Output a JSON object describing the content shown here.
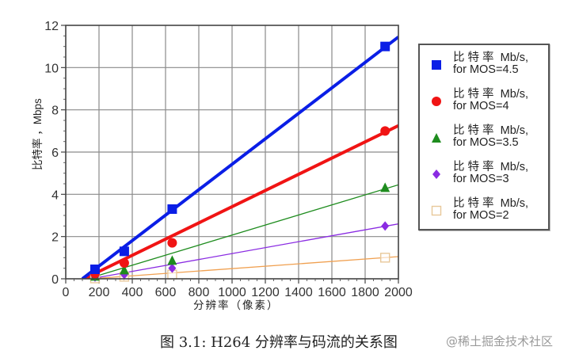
{
  "chart_data": {
    "type": "scatter",
    "title": "",
    "xlabel": "分辨率（像素）",
    "ylabel": "比特率，Mbps",
    "xlim": [
      0,
      2000
    ],
    "ylim": [
      0,
      12
    ],
    "xticks": [
      0,
      200,
      400,
      600,
      800,
      1000,
      1200,
      1400,
      1600,
      1800,
      2000
    ],
    "yticks": [
      0,
      2,
      4,
      6,
      8,
      10,
      12
    ],
    "grid": true,
    "legend_position": "right, outside plot",
    "series": [
      {
        "name": "比特率 Mb/s, for MOS=4.5",
        "color": "#0a1ee6",
        "marker": "square",
        "line_width": 4,
        "x": [
          176,
          352,
          640,
          1920
        ],
        "y": [
          0.45,
          1.3,
          3.3,
          11.0
        ],
        "fit_line": {
          "x": [
            100,
            2000
          ],
          "y": [
            0.0,
            11.45
          ]
        }
      },
      {
        "name": "比特率 Mb/s, for MOS=4",
        "color": "#f01414",
        "marker": "circle",
        "line_width": 4,
        "x": [
          176,
          352,
          640,
          1920
        ],
        "y": [
          0.25,
          0.75,
          1.7,
          7.0
        ],
        "fit_line": {
          "x": [
            110,
            2000
          ],
          "y": [
            0.0,
            7.25
          ]
        }
      },
      {
        "name": "比特率 Mb/s, for MOS=3.5",
        "color": "#1e8c1e",
        "marker": "triangle",
        "line_width": 1.3,
        "x": [
          176,
          352,
          640,
          1920
        ],
        "y": [
          0.1,
          0.4,
          0.85,
          4.3
        ],
        "fit_line": {
          "x": [
            130,
            2000
          ],
          "y": [
            0.0,
            4.45
          ]
        }
      },
      {
        "name": "比特率 Mb/s, for MOS=3",
        "color": "#8a2be2",
        "marker": "diamond",
        "line_width": 1.3,
        "x": [
          176,
          352,
          640,
          1920
        ],
        "y": [
          0.08,
          0.2,
          0.5,
          2.5
        ],
        "fit_line": {
          "x": [
            150,
            2000
          ],
          "y": [
            0.0,
            2.6
          ]
        }
      },
      {
        "name": "比特率 Mb/s, for MOS=2",
        "color": "#f0a050",
        "marker": "open-square",
        "line_width": 1.3,
        "x": [
          176,
          352,
          640,
          1920
        ],
        "y": [
          0.02,
          0.1,
          0.2,
          1.0
        ],
        "fit_line": {
          "x": [
            150,
            2000
          ],
          "y": [
            0.0,
            1.05
          ]
        }
      }
    ]
  },
  "legend": {
    "items": [
      {
        "line1": "比 特 率  Mb/s,",
        "line2": "for MOS=4.5"
      },
      {
        "line1": "比 特 率  Mb/s,",
        "line2": "for MOS=4"
      },
      {
        "line1": "比 特 率  Mb/s,",
        "line2": "for MOS=3.5"
      },
      {
        "line1": "比 特 率  Mb/s,",
        "line2": "for MOS=3"
      },
      {
        "line1": "比 特 率  Mb/s,",
        "line2": "for MOS=2"
      }
    ]
  },
  "axis": {
    "ylabel_text": "比特率 ，Mbps",
    "xlabel_text": "分辨率（像素）"
  },
  "caption": "图 3.1: H264 分辨率与码流的关系图",
  "watermark": "@稀土掘金技术社区"
}
